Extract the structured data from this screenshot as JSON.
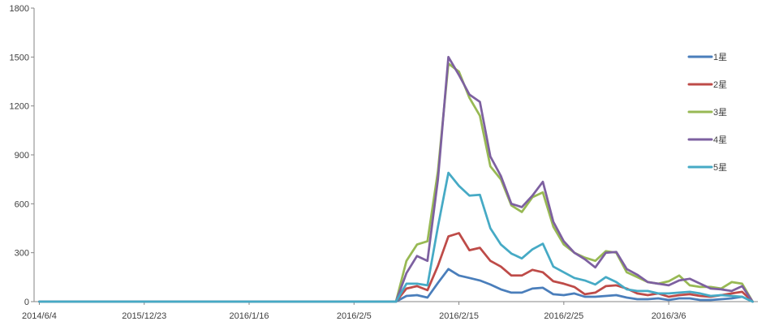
{
  "chart_data": {
    "type": "line",
    "title": "",
    "xlabel": "",
    "ylabel": "",
    "ylim": [
      0,
      1800
    ],
    "y_ticks": [
      0,
      300,
      600,
      900,
      1200,
      1500,
      1800
    ],
    "y_tick_labels": [
      "0",
      "300",
      "600",
      "900",
      "1200",
      "1500",
      "1800"
    ],
    "x_tick_labels": [
      {
        "label": "2014/6/4",
        "index": 0
      },
      {
        "label": "2015/12/23",
        "index": 10
      },
      {
        "label": "2016/1/16",
        "index": 20
      },
      {
        "label": "2016/2/5",
        "index": 30
      },
      {
        "label": "2016/2/15",
        "index": 40
      },
      {
        "label": "2016/2/25",
        "index": 50
      },
      {
        "label": "2016/3/6",
        "index": 60
      }
    ],
    "legend_position": "right",
    "grid": false,
    "n_points": 69,
    "series": [
      {
        "name": "1星",
        "color": "#4a7ebb",
        "values": [
          0,
          0,
          0,
          0,
          0,
          0,
          0,
          0,
          0,
          0,
          0,
          0,
          0,
          0,
          0,
          0,
          0,
          0,
          0,
          0,
          0,
          0,
          0,
          0,
          0,
          0,
          0,
          0,
          0,
          0,
          0,
          0,
          0,
          0,
          0,
          35,
          40,
          25,
          115,
          200,
          160,
          145,
          130,
          105,
          75,
          55,
          55,
          80,
          85,
          45,
          40,
          50,
          30,
          30,
          35,
          40,
          25,
          15,
          15,
          20,
          10,
          20,
          20,
          10,
          10,
          15,
          20,
          30,
          0
        ]
      },
      {
        "name": "2星",
        "color": "#be4b48",
        "values": [
          0,
          0,
          0,
          0,
          0,
          0,
          0,
          0,
          0,
          0,
          0,
          0,
          0,
          0,
          0,
          0,
          0,
          0,
          0,
          0,
          0,
          0,
          0,
          0,
          0,
          0,
          0,
          0,
          0,
          0,
          0,
          0,
          0,
          0,
          0,
          80,
          95,
          70,
          220,
          400,
          420,
          315,
          330,
          250,
          215,
          160,
          160,
          195,
          180,
          125,
          110,
          90,
          45,
          55,
          95,
          100,
          80,
          50,
          40,
          50,
          30,
          40,
          45,
          35,
          30,
          40,
          50,
          60,
          0
        ]
      },
      {
        "name": "3星",
        "color": "#98b954",
        "values": [
          0,
          0,
          0,
          0,
          0,
          0,
          0,
          0,
          0,
          0,
          0,
          0,
          0,
          0,
          0,
          0,
          0,
          0,
          0,
          0,
          0,
          0,
          0,
          0,
          0,
          0,
          0,
          0,
          0,
          0,
          0,
          0,
          0,
          0,
          0,
          250,
          350,
          370,
          800,
          1460,
          1410,
          1250,
          1140,
          830,
          750,
          590,
          550,
          640,
          670,
          460,
          350,
          300,
          270,
          250,
          310,
          300,
          180,
          150,
          120,
          110,
          125,
          160,
          100,
          90,
          90,
          80,
          120,
          110,
          0
        ]
      },
      {
        "name": "4星",
        "color": "#7d60a0",
        "values": [
          0,
          0,
          0,
          0,
          0,
          0,
          0,
          0,
          0,
          0,
          0,
          0,
          0,
          0,
          0,
          0,
          0,
          0,
          0,
          0,
          0,
          0,
          0,
          0,
          0,
          0,
          0,
          0,
          0,
          0,
          0,
          0,
          0,
          0,
          0,
          175,
          280,
          250,
          750,
          1500,
          1390,
          1270,
          1225,
          890,
          770,
          600,
          580,
          650,
          735,
          490,
          370,
          300,
          260,
          210,
          300,
          305,
          200,
          165,
          120,
          110,
          100,
          130,
          140,
          110,
          80,
          75,
          65,
          95,
          0
        ]
      },
      {
        "name": "5星",
        "color": "#46aac5",
        "values": [
          0,
          0,
          0,
          0,
          0,
          0,
          0,
          0,
          0,
          0,
          0,
          0,
          0,
          0,
          0,
          0,
          0,
          0,
          0,
          0,
          0,
          0,
          0,
          0,
          0,
          0,
          0,
          0,
          0,
          0,
          0,
          0,
          0,
          0,
          0,
          110,
          110,
          100,
          460,
          790,
          710,
          650,
          655,
          450,
          350,
          295,
          265,
          320,
          355,
          215,
          180,
          145,
          130,
          105,
          150,
          120,
          75,
          65,
          65,
          50,
          50,
          55,
          60,
          50,
          35,
          40,
          35,
          30,
          0
        ]
      }
    ]
  }
}
